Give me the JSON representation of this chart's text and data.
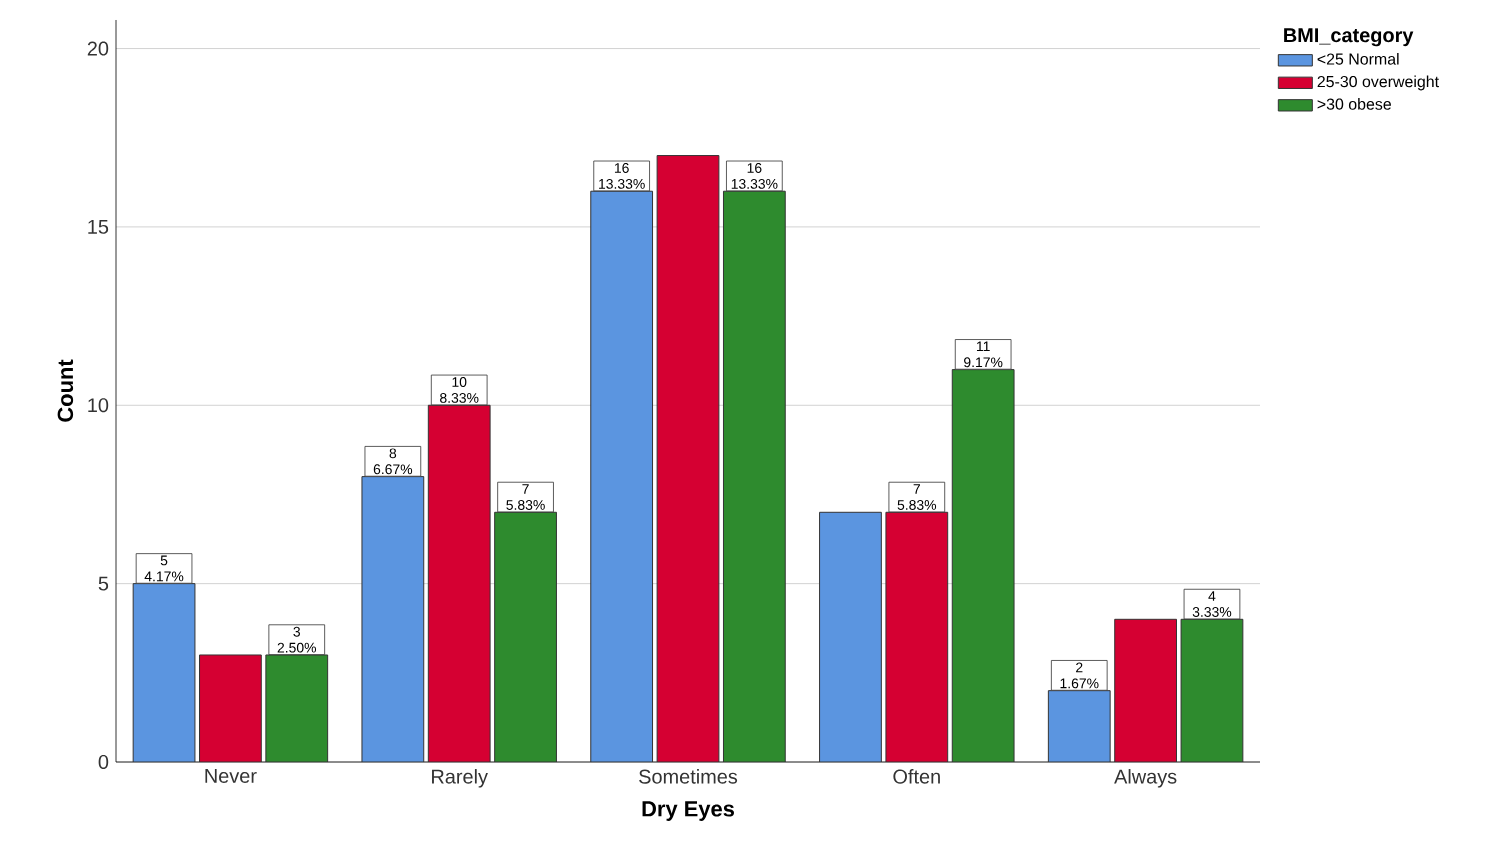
{
  "chart_data": {
    "type": "bar",
    "xlabel": "Dry Eyes",
    "ylabel": "Count",
    "legend_title": "BMI_category",
    "legend": "top right",
    "grid": "y",
    "categories": [
      "Never",
      "Rarely",
      "Sometimes",
      "Often",
      "Always"
    ],
    "ylim": [
      0,
      20.8
    ],
    "yticks": [
      0,
      5,
      10,
      15,
      20
    ],
    "series": [
      {
        "name": "<25 Normal",
        "color": "#5b95e0",
        "values": [
          5,
          8,
          16,
          7,
          2
        ],
        "value_labels": [
          "5 4.17%",
          "8 6.67%",
          "16 13.33%",
          null,
          "2 1.67%"
        ]
      },
      {
        "name": "25-30 overweight",
        "color": "#d50032",
        "values": [
          3,
          10,
          17,
          7,
          4
        ],
        "value_labels": [
          null,
          "10 8.33%",
          null,
          "7 5.83%",
          null
        ]
      },
      {
        "name": ">30 obese",
        "color": "#2e8b2e",
        "values": [
          3,
          7,
          16,
          11,
          4
        ],
        "value_labels": [
          "3 2.50%",
          "7 5.83%",
          "16 13.33%",
          "11 9.17%",
          "4 3.33%"
        ]
      }
    ]
  }
}
